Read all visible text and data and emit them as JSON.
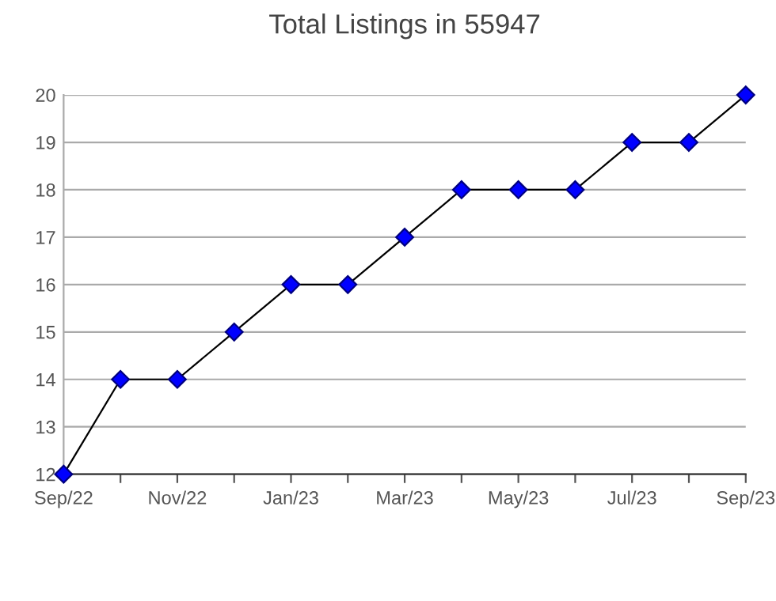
{
  "chart_data": {
    "type": "line",
    "title": "Total Listings in 55947",
    "categories": [
      "Sep/22",
      null,
      "Nov/22",
      null,
      "Jan/23",
      null,
      "Mar/23",
      null,
      "May/23",
      null,
      "Jul/23",
      null,
      "Sep/23"
    ],
    "series": [
      {
        "color": "#0000ff",
        "values": [
          12,
          14,
          14,
          15,
          16,
          16,
          17,
          18,
          18,
          18,
          19,
          19,
          20
        ]
      }
    ],
    "ylim": [
      12,
      20
    ],
    "yticks": [
      12,
      13,
      14,
      15,
      16,
      17,
      18,
      19,
      20
    ],
    "grid": "y",
    "marker": "diamond",
    "line_style": "solid",
    "legend": false
  }
}
